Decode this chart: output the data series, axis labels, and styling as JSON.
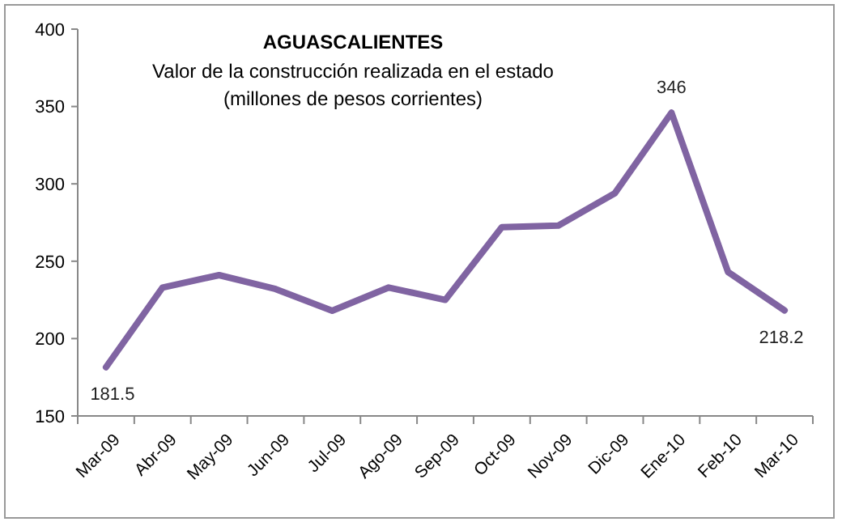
{
  "chart_data": {
    "type": "line",
    "title": "AGUASCALIENTES",
    "subtitle": "Valor de la construcción realizada en el estado\n(millones de pesos corrientes)",
    "categories": [
      "Mar-09",
      "Abr-09",
      "May-09",
      "Jun-09",
      "Jul-09",
      "Ago-09",
      "Sep-09",
      "Oct-09",
      "Nov-09",
      "Dic-09",
      "Ene-10",
      "Feb-10",
      "Mar-10"
    ],
    "series": [
      {
        "color": "#8064a2",
        "values": [
          181.5,
          233,
          241,
          232,
          218,
          233,
          225,
          272,
          273,
          294,
          346,
          243,
          218.2
        ],
        "value_labels": [
          "181.5",
          null,
          null,
          null,
          null,
          null,
          null,
          null,
          null,
          null,
          "346",
          null,
          "218.2"
        ]
      }
    ],
    "ylim": [
      150,
      400
    ],
    "yticks": [
      150,
      200,
      250,
      300,
      350,
      400
    ],
    "grid": false
  }
}
